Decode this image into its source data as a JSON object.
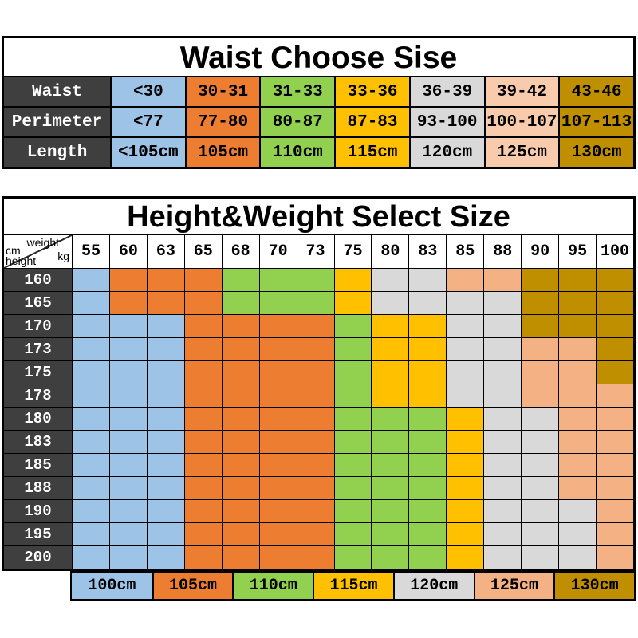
{
  "colors": {
    "blue": "#9DC3E6",
    "orange": "#ED7D31",
    "green": "#92D050",
    "yellow": "#FFC000",
    "gray": "#D9D9D9",
    "peach": "#F4B183",
    "peach_light": "#F8CBAD",
    "gold": "#BF8F00",
    "header_dark": "#3F3F3F"
  },
  "cell_codes": {
    "B": "blue",
    "O": "orange",
    "G": "green",
    "Y": "yellow",
    "A": "gray",
    "P": "peach",
    "D": "gold"
  },
  "chart_data": [
    {
      "type": "table",
      "title": "Waist Choose Sise",
      "column_colors": [
        "blue",
        "orange",
        "green",
        "yellow",
        "gray",
        "peach_light",
        "gold"
      ],
      "rows": [
        {
          "label": "Waist",
          "cells": [
            "<30",
            "30-31",
            "31-33",
            "33-36",
            "36-39",
            "39-42",
            "43-46"
          ]
        },
        {
          "label": "Perimeter",
          "cells": [
            "<77",
            "77-80",
            "80-87",
            "87-83",
            "93-100",
            "100-107",
            "107-113"
          ]
        },
        {
          "label": "Length",
          "cells": [
            "<105cm",
            "105cm",
            "110cm",
            "115cm",
            "120cm",
            "125cm",
            "130cm"
          ]
        }
      ]
    },
    {
      "type": "table",
      "title": "Height&Weight Select Size",
      "corner": {
        "weight": "weight",
        "kg": "kg",
        "cm": "cm",
        "height": "height"
      },
      "weight_columns": [
        "55",
        "60",
        "63",
        "65",
        "68",
        "70",
        "73",
        "75",
        "80",
        "83",
        "85",
        "88",
        "90",
        "95",
        "100"
      ],
      "height_rows": [
        {
          "height": "160",
          "cells": "BOOOGGGYAAPPDDD"
        },
        {
          "height": "165",
          "cells": "BOOOGGGYAAAADDD"
        },
        {
          "height": "170",
          "cells": "BBBOOOOGYYAADDD"
        },
        {
          "height": "173",
          "cells": "BBBOOOOGYYAAPPD"
        },
        {
          "height": "175",
          "cells": "BBBOOOOGYYAAPPD"
        },
        {
          "height": "178",
          "cells": "BBBOOOOGYYAAPPP"
        },
        {
          "height": "180",
          "cells": "BBBOOOOGGGYAAPP"
        },
        {
          "height": "183",
          "cells": "BBBOOOOGGGYAAPP"
        },
        {
          "height": "185",
          "cells": "BBBOOOOGGGYAAPP"
        },
        {
          "height": "188",
          "cells": "BBBOOOOGGGYAAPP"
        },
        {
          "height": "190",
          "cells": "BBBOOOOGGGYAAAP"
        },
        {
          "height": "195",
          "cells": "BBBOOOOGGGYAAAP"
        },
        {
          "height": "200",
          "cells": "BBBOOOOGGGYAAAP"
        }
      ]
    }
  ],
  "legend": {
    "items": [
      {
        "label": "100cm",
        "color": "blue"
      },
      {
        "label": "105cm",
        "color": "orange"
      },
      {
        "label": "110cm",
        "color": "green"
      },
      {
        "label": "115cm",
        "color": "yellow"
      },
      {
        "label": "120cm",
        "color": "gray"
      },
      {
        "label": "125cm",
        "color": "peach"
      },
      {
        "label": "130cm",
        "color": "gold"
      }
    ]
  }
}
